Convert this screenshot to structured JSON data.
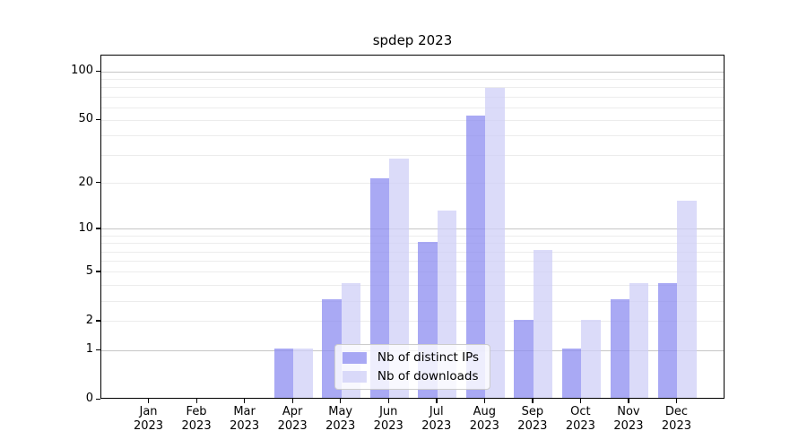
{
  "chart_data": {
    "type": "bar",
    "title": "spdep 2023",
    "months": [
      "Jan",
      "Feb",
      "Mar",
      "Apr",
      "May",
      "Jun",
      "Jul",
      "Aug",
      "Sep",
      "Oct",
      "Nov",
      "Dec"
    ],
    "year_label": "2023",
    "categories": [
      "Jan 2023",
      "Feb 2023",
      "Mar 2023",
      "Apr 2023",
      "May 2023",
      "Jun 2023",
      "Jul 2023",
      "Aug 2023",
      "Sep 2023",
      "Oct 2023",
      "Nov 2023",
      "Dec 2023"
    ],
    "series": [
      {
        "name": "Nb of distinct IPs",
        "color": "rgba(140,140,240,0.75)",
        "values": [
          0,
          0,
          0,
          1,
          3,
          21,
          8,
          52,
          2,
          1,
          3,
          4
        ]
      },
      {
        "name": "Nb of downloads",
        "color": "rgba(207,207,247,0.75)",
        "values": [
          0,
          0,
          0,
          1,
          4,
          28,
          13,
          78,
          7,
          2,
          4,
          15
        ]
      }
    ],
    "y_scale": "log1p",
    "y_max": 126,
    "y_ticks": [
      0,
      1,
      2,
      5,
      10,
      20,
      50,
      100
    ],
    "gridlines_major": [
      1,
      10,
      100
    ],
    "gridlines_minor": [
      2,
      3,
      4,
      5,
      6,
      7,
      8,
      9,
      20,
      30,
      40,
      50,
      60,
      70,
      80,
      90
    ],
    "grid": true,
    "legend_position": "bottom-center",
    "colors": {
      "major_grid": "#c6c6c6",
      "minor_grid": "#ececec",
      "axis": "#000000"
    }
  }
}
